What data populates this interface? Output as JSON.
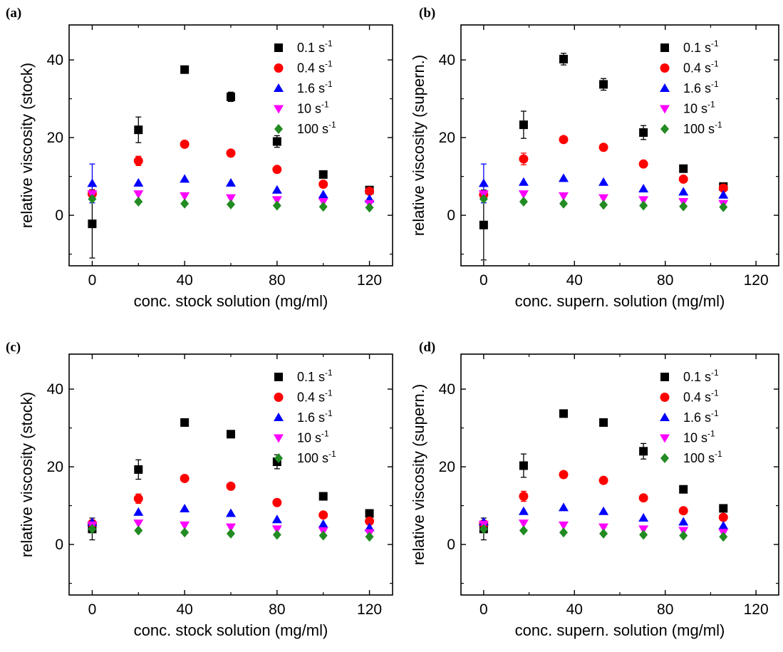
{
  "chart_data": [
    {
      "panel": "(a)",
      "type": "scatter",
      "xlabel": "conc. stock solution (mg/ml)",
      "ylabel": "relative viscosity (stock)",
      "xlim": [
        -10,
        130
      ],
      "ylim": [
        -13,
        49
      ],
      "xticks": [
        0,
        40,
        80,
        120
      ],
      "yticks": [
        0,
        20,
        40
      ],
      "x": [
        0,
        20,
        40,
        60,
        80,
        100,
        120
      ],
      "legend_position": "top-right",
      "series": [
        {
          "name": "0.1 s",
          "exp": "-1",
          "color": "#000000",
          "marker": "square",
          "values": [
            -2.2,
            22,
            37.5,
            30.5,
            19,
            10.5,
            6.5
          ],
          "err": [
            8.8,
            3.3,
            0.8,
            1.2,
            1.5,
            0.5,
            0.4
          ]
        },
        {
          "name": "0.4 s",
          "exp": "-1",
          "color": "#ff0000",
          "marker": "circle",
          "values": [
            5.5,
            14,
            18.3,
            16,
            11.8,
            8,
            6.2
          ],
          "err": [
            0.5,
            1.2,
            0.5,
            0.4,
            0.4,
            0.3,
            0.3
          ]
        },
        {
          "name": "1.6 s",
          "exp": "-1",
          "color": "#0000ff",
          "marker": "triangle-up",
          "values": [
            8.2,
            8.3,
            9.3,
            8.3,
            6.5,
            5.3,
            4.2
          ],
          "err": [
            5,
            0.5,
            0.3,
            0.3,
            0.3,
            0.3,
            0.3
          ]
        },
        {
          "name": "10 s",
          "exp": "-1",
          "color": "#ff00ff",
          "marker": "triangle-down",
          "values": [
            5.5,
            5.5,
            5,
            4.5,
            4,
            3.5,
            3
          ],
          "err": [
            0.3,
            0.3,
            0.3,
            0.3,
            0.3,
            0.3,
            0.3
          ]
        },
        {
          "name": "100 s",
          "exp": "-1",
          "color": "#228b22",
          "marker": "diamond",
          "values": [
            4.2,
            3.5,
            3,
            2.8,
            2.5,
            2.2,
            2
          ],
          "err": [
            0.2,
            0.2,
            0.2,
            0.2,
            0.2,
            0.2,
            0.2
          ]
        }
      ]
    },
    {
      "panel": "(b)",
      "type": "scatter",
      "xlabel": "conc. supern. solution (mg/ml)",
      "ylabel": "relative viscosity (supern.)",
      "xlim": [
        -10,
        130
      ],
      "ylim": [
        -13,
        49
      ],
      "xticks": [
        0,
        40,
        80,
        120
      ],
      "yticks": [
        0,
        20,
        40
      ],
      "x": [
        0,
        17.6,
        35.2,
        52.8,
        70.4,
        88,
        105.6
      ],
      "legend_position": "top-right",
      "series": [
        {
          "name": "0.1 s",
          "exp": "-1",
          "color": "#000000",
          "marker": "square",
          "values": [
            -2.5,
            23.3,
            40.2,
            33.7,
            21.3,
            12,
            7.4
          ],
          "err": [
            9,
            3.5,
            1.5,
            1.5,
            1.8,
            0.4,
            0.4
          ]
        },
        {
          "name": "0.4 s",
          "exp": "-1",
          "color": "#ff0000",
          "marker": "circle",
          "values": [
            5.3,
            14.5,
            19.5,
            17.5,
            13.2,
            9.3,
            7
          ],
          "err": [
            0.5,
            1.5,
            0.5,
            0.5,
            0.8,
            0.3,
            0.3
          ]
        },
        {
          "name": "1.6 s",
          "exp": "-1",
          "color": "#0000ff",
          "marker": "triangle-up",
          "values": [
            8.2,
            8.5,
            9.5,
            8.5,
            6.8,
            6,
            5.2
          ],
          "err": [
            5,
            0.5,
            0.3,
            0.3,
            0.3,
            0.3,
            0.3
          ]
        },
        {
          "name": "10 s",
          "exp": "-1",
          "color": "#ff00ff",
          "marker": "triangle-down",
          "values": [
            5.5,
            5.5,
            5,
            4.5,
            4,
            3.5,
            3
          ],
          "err": [
            0.3,
            0.3,
            0.3,
            0.3,
            0.3,
            0.3,
            0.3
          ]
        },
        {
          "name": "100 s",
          "exp": "-1",
          "color": "#228b22",
          "marker": "diamond",
          "values": [
            4.2,
            3.5,
            3,
            2.7,
            2.5,
            2.3,
            2.1
          ],
          "err": [
            0.2,
            0.2,
            0.2,
            0.2,
            0.2,
            0.2,
            0.2
          ]
        }
      ]
    },
    {
      "panel": "(c)",
      "type": "scatter",
      "xlabel": "conc. stock solution (mg/ml)",
      "ylabel": "relative viscosity (stock)",
      "xlim": [
        -10,
        130
      ],
      "ylim": [
        -13,
        49
      ],
      "xticks": [
        0,
        40,
        80,
        120
      ],
      "yticks": [
        0,
        20,
        40
      ],
      "x": [
        0,
        20,
        40,
        60,
        80,
        100,
        120
      ],
      "legend_position": "top-right",
      "series": [
        {
          "name": "0.1 s",
          "exp": "-1",
          "color": "#000000",
          "marker": "square",
          "values": [
            4,
            19.3,
            31.4,
            28.4,
            21.3,
            12.4,
            8
          ],
          "err": [
            2.8,
            2.5,
            0.6,
            0.6,
            1.8,
            0.4,
            0.3
          ]
        },
        {
          "name": "0.4 s",
          "exp": "-1",
          "color": "#ff0000",
          "marker": "circle",
          "values": [
            5.4,
            11.8,
            17,
            15,
            10.8,
            7.6,
            6
          ],
          "err": [
            0.5,
            1.2,
            0.4,
            0.4,
            0.4,
            0.3,
            0.3
          ]
        },
        {
          "name": "1.6 s",
          "exp": "-1",
          "color": "#0000ff",
          "marker": "triangle-up",
          "values": [
            5.7,
            8.3,
            9.2,
            8,
            6.4,
            5.2,
            4.3
          ],
          "err": [
            0.4,
            0.4,
            0.3,
            0.3,
            0.3,
            0.3,
            0.3
          ]
        },
        {
          "name": "10 s",
          "exp": "-1",
          "color": "#ff00ff",
          "marker": "triangle-down",
          "values": [
            5,
            5.5,
            5,
            4.5,
            4,
            3.5,
            3
          ],
          "err": [
            0.3,
            0.3,
            0.3,
            0.3,
            0.3,
            0.3,
            0.3
          ]
        },
        {
          "name": "100 s",
          "exp": "-1",
          "color": "#228b22",
          "marker": "diamond",
          "values": [
            4,
            3.6,
            3.1,
            2.8,
            2.5,
            2.3,
            2
          ],
          "err": [
            0.2,
            0.2,
            0.2,
            0.2,
            0.2,
            0.2,
            0.2
          ]
        }
      ]
    },
    {
      "panel": "(d)",
      "type": "scatter",
      "xlabel": "conc. supern. solution (mg/ml)",
      "ylabel": "relative viscosity (supern.)",
      "xlim": [
        -10,
        130
      ],
      "ylim": [
        -13,
        49
      ],
      "xticks": [
        0,
        40,
        80,
        120
      ],
      "yticks": [
        0,
        20,
        40
      ],
      "x": [
        0,
        17.6,
        35.2,
        52.8,
        70.4,
        88,
        105.6
      ],
      "legend_position": "top-right",
      "series": [
        {
          "name": "0.1 s",
          "exp": "-1",
          "color": "#000000",
          "marker": "square",
          "values": [
            4,
            20.3,
            33.7,
            31.4,
            24,
            14.2,
            9.3
          ],
          "err": [
            2.8,
            3,
            0.5,
            0.6,
            2,
            0.4,
            0.3
          ]
        },
        {
          "name": "0.4 s",
          "exp": "-1",
          "color": "#ff0000",
          "marker": "circle",
          "values": [
            5.3,
            12.4,
            18,
            16.5,
            12,
            8.7,
            7
          ],
          "err": [
            0.5,
            1.3,
            0.4,
            0.4,
            0.4,
            0.3,
            0.3
          ]
        },
        {
          "name": "1.6 s",
          "exp": "-1",
          "color": "#0000ff",
          "marker": "triangle-up",
          "values": [
            5.8,
            8.5,
            9.5,
            8.5,
            6.8,
            5.8,
            4.8
          ],
          "err": [
            0.4,
            0.4,
            0.3,
            0.3,
            0.3,
            0.3,
            0.3
          ]
        },
        {
          "name": "10 s",
          "exp": "-1",
          "color": "#ff00ff",
          "marker": "triangle-down",
          "values": [
            5.2,
            5.5,
            5,
            4.5,
            4,
            3.6,
            3.1
          ],
          "err": [
            0.3,
            0.3,
            0.3,
            0.3,
            0.3,
            0.3,
            0.3
          ]
        },
        {
          "name": "100 s",
          "exp": "-1",
          "color": "#228b22",
          "marker": "diamond",
          "values": [
            4,
            3.6,
            3.1,
            2.8,
            2.5,
            2.3,
            2
          ],
          "err": [
            0.2,
            0.2,
            0.2,
            0.2,
            0.2,
            0.2,
            0.2
          ]
        }
      ]
    }
  ]
}
